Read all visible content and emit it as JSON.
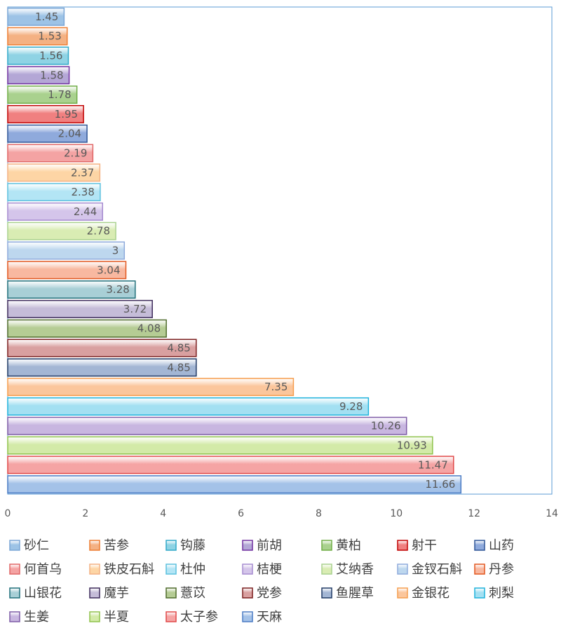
{
  "chart_data": {
    "type": "bar",
    "orientation": "horizontal",
    "xlim": [
      0,
      14
    ],
    "x_ticks": [
      0,
      2,
      4,
      6,
      8,
      10,
      12,
      14
    ],
    "grid": false,
    "legend_position": "bottom",
    "series": [
      {
        "name": "砂仁",
        "value": 1.45,
        "color": "#9dc3e6",
        "label": "1.45"
      },
      {
        "name": "苦参",
        "value": 1.53,
        "color": "#f4b183",
        "label": "1.53"
      },
      {
        "name": "钩藤",
        "value": 1.56,
        "color": "#8fd3e4",
        "label": "1.56"
      },
      {
        "name": "前胡",
        "value": 1.58,
        "color": "#b4a7d6",
        "label": "1.58"
      },
      {
        "name": "黄柏",
        "value": 1.78,
        "color": "#a9d18e",
        "label": "1.78"
      },
      {
        "name": "射干",
        "value": 1.95,
        "color": "#f08080",
        "label": "1.95"
      },
      {
        "name": "山药",
        "value": 2.04,
        "color": "#8faadc",
        "label": "2.04"
      },
      {
        "name": "何首乌",
        "value": 2.19,
        "color": "#f4a3a3",
        "label": "2.19"
      },
      {
        "name": "铁皮石斛",
        "value": 2.37,
        "color": "#fdd5a5",
        "label": "2.37"
      },
      {
        "name": "杜仲",
        "value": 2.38,
        "color": "#b3e5f5",
        "label": "2.38"
      },
      {
        "name": "桔梗",
        "value": 2.44,
        "color": "#d4c5ea",
        "label": "2.44"
      },
      {
        "name": "艾纳香",
        "value": 2.78,
        "color": "#d9ecb3",
        "label": "2.78"
      },
      {
        "name": "金钗石斛",
        "value": 3,
        "color": "#bdd7ee",
        "label": "3"
      },
      {
        "name": "丹参",
        "value": 3.04,
        "color": "#f8b8a0",
        "label": "3.04"
      },
      {
        "name": "山银花",
        "value": 3.28,
        "color": "#a8cfd6",
        "label": "3.28"
      },
      {
        "name": "魔芋",
        "value": 3.72,
        "color": "#c5bcd8",
        "label": "3.72"
      },
      {
        "name": "薏苡",
        "value": 4.08,
        "color": "#b5cc94",
        "label": "4.08"
      },
      {
        "name": "党参",
        "value": 4.85,
        "color": "#d9a0a0",
        "label": "4.85"
      },
      {
        "name": "鱼腥草",
        "value": 4.85,
        "color": "#a3b6d4",
        "label": "4.85"
      },
      {
        "name": "金银花",
        "value": 7.35,
        "color": "#fbc69c",
        "label": "7.35"
      },
      {
        "name": "刺梨",
        "value": 9.28,
        "color": "#a3e0f2",
        "label": "9.28"
      },
      {
        "name": "生姜",
        "value": 10.26,
        "color": "#c8b6e0",
        "label": "10.26"
      },
      {
        "name": "半夏",
        "value": 10.93,
        "color": "#d3eaa8",
        "label": "10.93"
      },
      {
        "name": "太子参",
        "value": 11.47,
        "color": "#f5a4a4",
        "label": "11.47"
      },
      {
        "name": "天麻",
        "value": 11.66,
        "color": "#a4c2e8",
        "label": "11.66"
      }
    ],
    "border_colors": {
      "砂仁": "#7aa6d6",
      "苦参": "#ed7d31",
      "钩藤": "#31a9c9",
      "前胡": "#7030a0",
      "黄柏": "#70ad47",
      "射干": "#c00000",
      "山药": "#2f5597",
      "何首乌": "#e06666",
      "铁皮石斛": "#f4b183",
      "杜仲": "#5bc0de",
      "桔梗": "#a68bd0",
      "艾纳香": "#a9d18e",
      "金钗石斛": "#8eaadb",
      "丹参": "#e2571e",
      "山银花": "#1f6f7a",
      "魔芋": "#3d2a5a",
      "薏苡": "#4e6b2b",
      "党参": "#7b1f1f",
      "鱼腥草": "#1f3864",
      "金银花": "#f59d4e",
      "刺梨": "#1fb2dc",
      "生姜": "#7d5ba6",
      "半夏": "#8fc24b",
      "太子参": "#e04848",
      "天麻": "#4a7bc4"
    }
  }
}
